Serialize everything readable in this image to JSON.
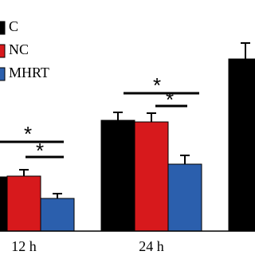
{
  "chart_data": {
    "type": "bar",
    "categories": [
      "12 h",
      "24 h",
      null
    ],
    "series": [
      {
        "name": "C",
        "color": "#000000",
        "values": [
          68,
          139,
          216
        ],
        "errors": [
          null,
          10,
          20
        ]
      },
      {
        "name": "NC",
        "color": "#d7191c",
        "values": [
          69,
          137,
          null
        ],
        "errors": [
          8,
          11,
          null
        ]
      },
      {
        "name": "MHRT",
        "color": "#2b5fad",
        "values": [
          41,
          84,
          null
        ],
        "errors": [
          6,
          11,
          null
        ]
      }
    ],
    "ylim": [
      0,
      290
    ],
    "annotations": [
      "*",
      "*",
      "*",
      "*"
    ]
  }
}
